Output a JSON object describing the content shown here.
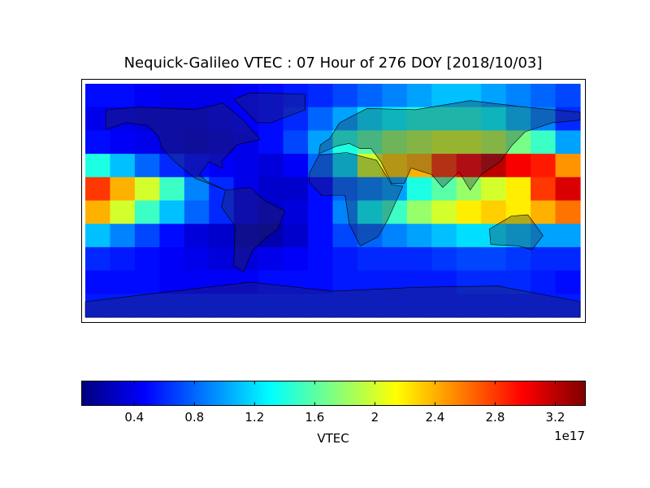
{
  "chart_data": {
    "type": "heatmap",
    "title": "Nequick-Galileo VTEC : 07 Hour of 276 DOY [2018/10/03]",
    "colormap": "jet",
    "colorbar_label": "VTEC",
    "colorbar_offset": "1e17",
    "clim": [
      0.05,
      3.4
    ],
    "cticks": [
      0.4,
      0.8,
      1.2,
      1.6,
      2.0,
      2.4,
      2.8,
      3.2
    ],
    "values": [
      [
        0.5,
        0.5,
        0.45,
        0.4,
        0.4,
        0.4,
        0.45,
        0.5,
        0.55,
        0.6,
        0.7,
        0.8,
        0.9,
        1.0,
        1.1,
        1.1,
        1.0,
        0.9,
        0.8,
        0.7
      ],
      [
        0.4,
        0.4,
        0.35,
        0.35,
        0.35,
        0.4,
        0.45,
        0.5,
        0.6,
        0.8,
        1.0,
        1.2,
        1.3,
        1.4,
        1.4,
        1.4,
        1.3,
        1.1,
        0.9,
        0.6
      ],
      [
        0.5,
        0.45,
        0.4,
        0.35,
        0.3,
        0.35,
        0.4,
        0.5,
        0.7,
        1.0,
        1.4,
        1.6,
        1.8,
        1.9,
        2.0,
        2.0,
        1.9,
        1.7,
        1.5,
        1.0
      ],
      [
        1.4,
        1.1,
        0.8,
        0.6,
        0.5,
        0.45,
        0.4,
        0.35,
        0.45,
        0.8,
        1.2,
        2.0,
        2.3,
        2.4,
        2.8,
        3.0,
        3.2,
        3.0,
        2.9,
        2.5
      ],
      [
        2.8,
        2.4,
        2.0,
        1.5,
        0.9,
        0.6,
        0.4,
        0.3,
        0.3,
        0.5,
        0.8,
        0.9,
        1.0,
        1.4,
        1.6,
        1.8,
        2.0,
        2.2,
        2.8,
        3.1
      ],
      [
        2.4,
        2.0,
        1.5,
        1.1,
        0.8,
        0.6,
        0.4,
        0.3,
        0.35,
        0.5,
        0.9,
        1.3,
        1.5,
        1.8,
        2.0,
        2.2,
        2.3,
        2.2,
        2.4,
        2.6
      ],
      [
        1.1,
        0.9,
        0.7,
        0.5,
        0.35,
        0.3,
        0.25,
        0.2,
        0.3,
        0.5,
        0.7,
        0.8,
        0.9,
        1.0,
        1.1,
        1.2,
        1.2,
        1.1,
        1.0,
        1.0
      ],
      [
        0.6,
        0.55,
        0.5,
        0.45,
        0.4,
        0.35,
        0.35,
        0.4,
        0.45,
        0.5,
        0.55,
        0.6,
        0.6,
        0.6,
        0.65,
        0.7,
        0.7,
        0.65,
        0.6,
        0.6
      ],
      [
        0.5,
        0.5,
        0.5,
        0.45,
        0.45,
        0.45,
        0.45,
        0.5,
        0.5,
        0.5,
        0.55,
        0.55,
        0.55,
        0.55,
        0.55,
        0.6,
        0.6,
        0.6,
        0.55,
        0.5
      ],
      [
        0.55,
        0.55,
        0.55,
        0.55,
        0.55,
        0.55,
        0.55,
        0.55,
        0.55,
        0.55,
        0.55,
        0.55,
        0.55,
        0.55,
        0.55,
        0.55,
        0.55,
        0.55,
        0.55,
        0.55
      ]
    ]
  }
}
